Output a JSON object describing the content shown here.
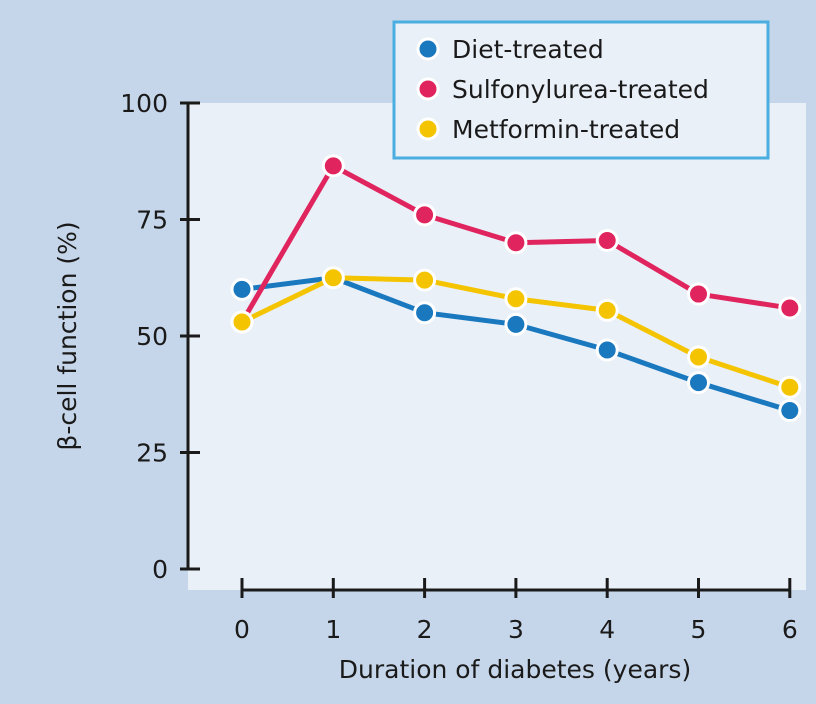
{
  "colors": {
    "frame": "#c6d6ea",
    "plot_bg": "#eaf0f8",
    "legend_border": "#4aaee0",
    "axis": "#1a1a1a"
  },
  "chart_data": {
    "type": "line",
    "xlabel": "Duration of diabetes (years)",
    "ylabel": "β-cell function (%)",
    "x": [
      0,
      1,
      2,
      3,
      4,
      5,
      6
    ],
    "xlim": [
      0,
      6
    ],
    "ylim": [
      0,
      100
    ],
    "yticks": [
      0,
      25,
      50,
      75,
      100
    ],
    "grid": false,
    "legend_position": "top-right",
    "series": [
      {
        "name": "Diet-treated",
        "color": "#1a78bf",
        "values": [
          60,
          62.5,
          55,
          52.5,
          47,
          40,
          34
        ]
      },
      {
        "name": "Sulfonylurea-treated",
        "color": "#e0245e",
        "values": [
          53,
          86.5,
          76,
          70,
          70.5,
          59,
          56
        ]
      },
      {
        "name": "Metformin-treated",
        "color": "#f5c400",
        "values": [
          53,
          62.5,
          62,
          58,
          55.5,
          45.5,
          39
        ]
      }
    ]
  }
}
